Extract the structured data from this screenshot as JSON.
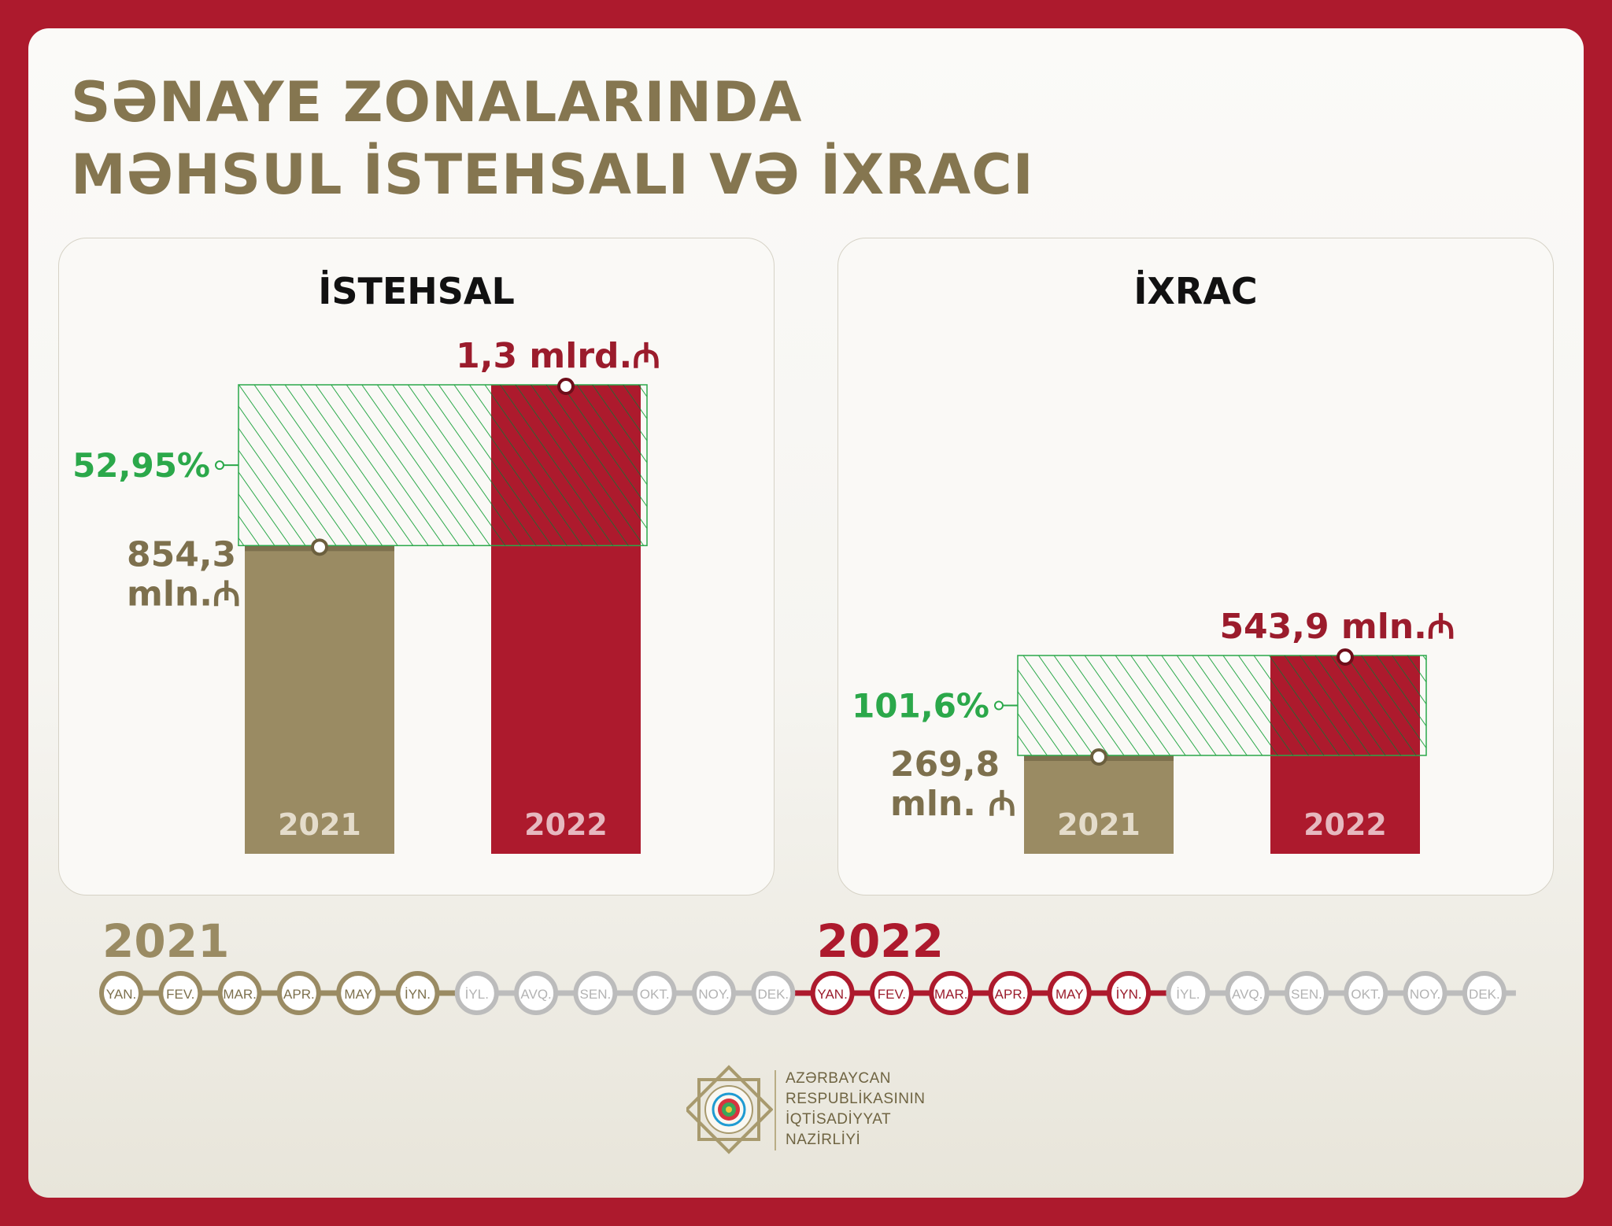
{
  "title": {
    "line1": "SƏNAYE ZONALARINDA",
    "line2": "MƏHSUL İSTEHSALI VƏ İXRACI"
  },
  "colors": {
    "frame": "#ad1a2d",
    "gold": "#9a8b63",
    "red": "#ad1a2d",
    "green": "#2ba84a",
    "title": "#857650",
    "inactive": "#bcbcbc"
  },
  "chart_data": [
    {
      "type": "bar",
      "title": "İSTEHSAL",
      "categories": [
        "2021",
        "2022"
      ],
      "values": [
        854.3,
        1300
      ],
      "unit": "mln. ₼",
      "labels": {
        "2021": [
          "854,3",
          "mln.₼"
        ],
        "2022": "1,3 mlrd.₼"
      },
      "growth": "52,95%"
    },
    {
      "type": "bar",
      "title": "İXRAC",
      "categories": [
        "2021",
        "2022"
      ],
      "values": [
        269.8,
        543.9
      ],
      "unit": "mln. ₼",
      "labels": {
        "2021": [
          "269,8",
          "mln. ₼"
        ],
        "2022": "543,9 mln.₼"
      },
      "growth": "101,6%"
    }
  ],
  "timeline": {
    "years": [
      {
        "label": "2021",
        "color": "#9a8b63",
        "active_months": 6
      },
      {
        "label": "2022",
        "color": "#ad1a2d",
        "active_months": 6
      }
    ],
    "months": [
      "YAN.",
      "FEV.",
      "MAR.",
      "APR.",
      "MAY",
      "İYN.",
      "İYL.",
      "AVQ.",
      "SEN.",
      "OKT.",
      "NOY.",
      "DEK."
    ]
  },
  "footer": {
    "ministry": [
      "AZƏRBAYCAN",
      "RESPUBLİKASININ",
      "İQTİSADİYYAT",
      "NAZİRLİYİ"
    ],
    "emblem": "ministry-emblem-icon"
  }
}
